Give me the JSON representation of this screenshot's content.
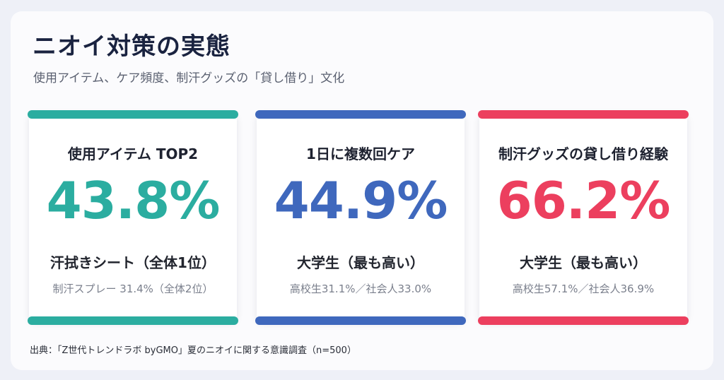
{
  "page": {
    "title": "ニオイ対策の実態",
    "subtitle": "使用アイテム、ケア頻度、制汗グッズの「貸し借り」文化",
    "source": "出典：「Z世代トレンドラボ byGMO」夏のニオイに関する意識調査（n=500）"
  },
  "cards": [
    {
      "heading": "使用アイテム TOP2",
      "value": "43.8%",
      "main": "汗拭きシート（全体1位）",
      "sub": "制汗スプレー 31.4%（全体2位）",
      "color": "#2bada0"
    },
    {
      "heading": "1日に複数回ケア",
      "value": "44.9%",
      "main": "大学生（最も高い）",
      "sub": "高校生31.1%／社会人33.0%",
      "color": "#3f68bd"
    },
    {
      "heading": "制汗グッズの貸し借り経験",
      "value": "66.2%",
      "main": "大学生（最も高い）",
      "sub": "高校生57.1%／社会人36.9%",
      "color": "#ec3f5e"
    }
  ]
}
